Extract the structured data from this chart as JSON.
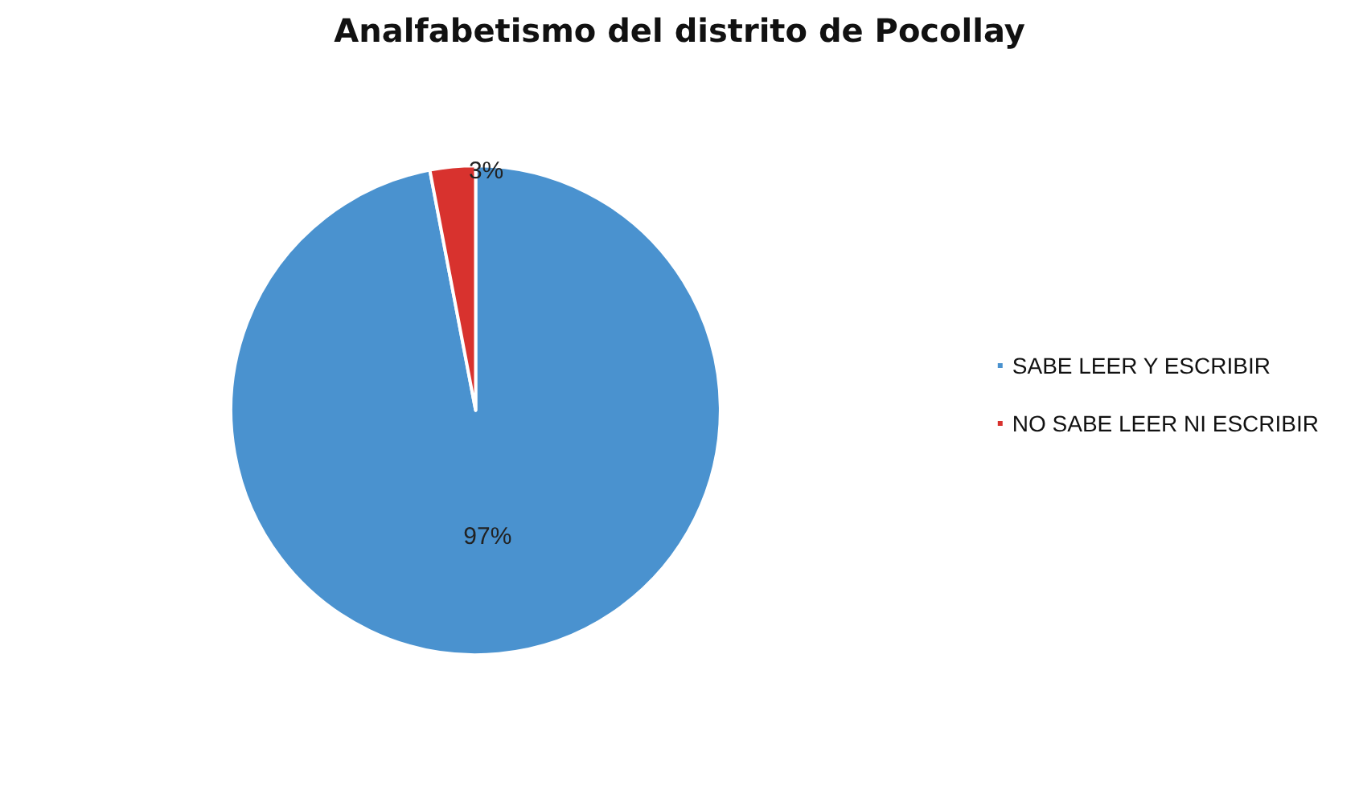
{
  "chart_data": {
    "type": "pie",
    "title": "Analfabetismo del distrito de Pocollay",
    "categories": [
      "SABE LEER Y ESCRIBIR",
      "NO SABE LEER NI ESCRIBIR"
    ],
    "values": [
      97,
      3
    ],
    "colors": [
      "#4a92cf",
      "#d8322e"
    ],
    "legend": "right",
    "value_labels": [
      "97%",
      "3%"
    ]
  }
}
